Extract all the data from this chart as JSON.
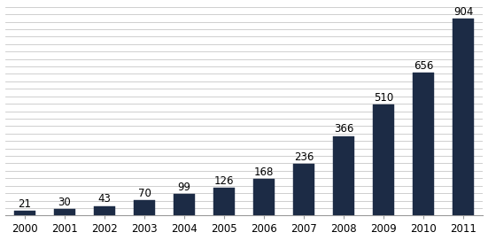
{
  "years": [
    "2000",
    "2001",
    "2002",
    "2003",
    "2004",
    "2005",
    "2006",
    "2007",
    "2008",
    "2009",
    "2010",
    "2011"
  ],
  "values": [
    21,
    30,
    43,
    70,
    99,
    126,
    168,
    236,
    366,
    510,
    656,
    904
  ],
  "bar_color": "#1c2b45",
  "background_color": "#ffffff",
  "ylim": [
    0,
    960
  ],
  "n_gridlines": 28,
  "label_fontsize": 8.5,
  "tick_fontsize": 8.5,
  "bar_width": 0.55
}
